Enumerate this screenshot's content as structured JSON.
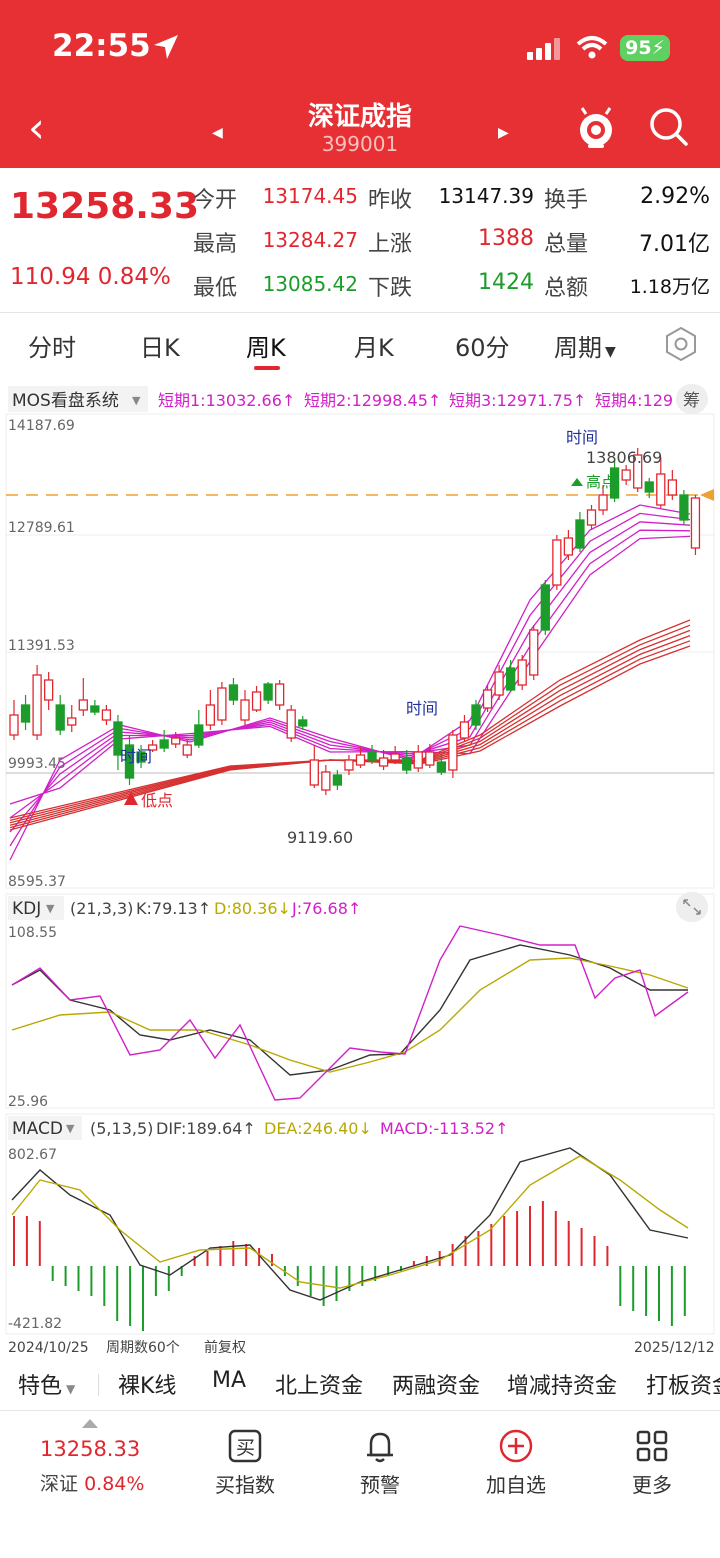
{
  "status": {
    "time": "22:55",
    "battery": "95"
  },
  "header": {
    "title": "深证成指",
    "code": "399001"
  },
  "quote": {
    "price": "13258.33",
    "change": "110.94 0.84%",
    "rows": [
      [
        {
          "label": "今开",
          "value": "13174.45"
        },
        {
          "label": "昨收",
          "value": "13147.39"
        },
        {
          "label": "换手",
          "value": "2.92%"
        }
      ],
      [
        {
          "label": "最高",
          "value": "13284.27"
        },
        {
          "label": "上涨",
          "value": "1388"
        },
        {
          "label": "总量",
          "value": "7.01亿"
        }
      ],
      [
        {
          "label": "最低",
          "value": "13085.42"
        },
        {
          "label": "下跌",
          "value": "1424"
        },
        {
          "label": "总额",
          "value": "1.18万亿"
        }
      ]
    ]
  },
  "tabs": [
    "分时",
    "日K",
    "周K",
    "月K",
    "60分",
    "周期"
  ],
  "active_tab": "周K",
  "main_panel": {
    "system": "MOS看盘系统",
    "legend": [
      "短期1:13032.66↑",
      "短期2:12998.45↑",
      "短期3:12971.75↑",
      "短期4:129"
    ],
    "right_btn": "筹",
    "y_labels": [
      "14187.69",
      "12789.61",
      "11391.53",
      "9993.45",
      "8595.37"
    ],
    "annotations": {
      "high_value": "13806.69",
      "low_value": "9119.60",
      "time": "时间",
      "high": "高点",
      "low": "低点"
    }
  },
  "kdj_panel": {
    "name": "KDJ",
    "params": "(21,3,3)",
    "k": "K:79.13↑",
    "d": "D:80.36↓",
    "j": "J:76.68↑",
    "y_top": "108.55",
    "y_bottom": "25.96"
  },
  "macd_panel": {
    "name": "MACD",
    "params": "(5,13,5)",
    "dif": "DIF:189.64↑",
    "dea": "DEA:246.40↓",
    "macd": "MACD:-113.52↑",
    "y_top": "802.67",
    "y_bottom": "-421.82"
  },
  "footer_axis": {
    "start": "2024/10/25",
    "count": "周期数60个",
    "adjust": "前复权",
    "end": "2025/12/12"
  },
  "feature_tabs": [
    "特色",
    "裸K线",
    "MA",
    "北上资金",
    "两融资金",
    "增减持资金",
    "打板资金"
  ],
  "bottom_bar": {
    "price": "13258.33",
    "index_change_label": "深证",
    "index_change": "0.84%",
    "items": [
      "买指数",
      "预警",
      "加自选",
      "更多"
    ]
  },
  "colors": {
    "up": "#e0272f",
    "down": "#1c9c2a",
    "header": "#e63034"
  }
}
